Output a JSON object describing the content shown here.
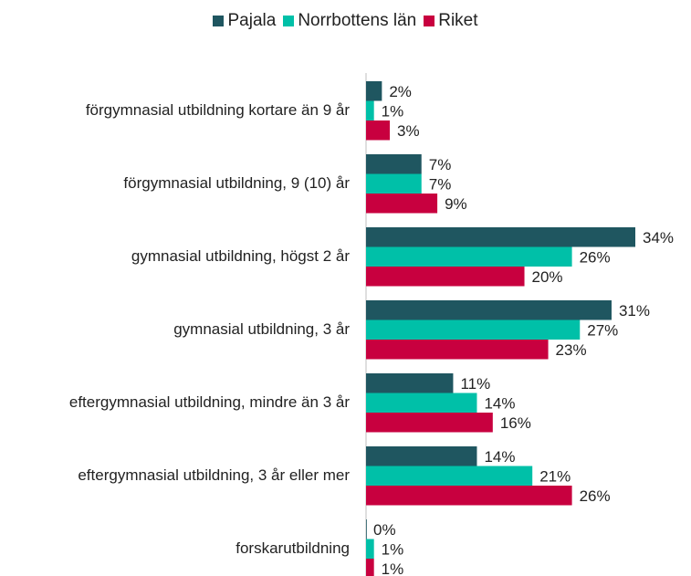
{
  "chart_data": {
    "type": "bar",
    "orientation": "horizontal",
    "categories": [
      "förgymnasial utbildning kortare än 9 år",
      "förgymnasial utbildning, 9 (10) år",
      "gymnasial utbildning, högst 2 år",
      "gymnasial utbildning, 3 år",
      "eftergymnasial utbildning, mindre än 3 år",
      "eftergymnasial utbildning, 3 år eller mer",
      "forskarutbildning"
    ],
    "series": [
      {
        "name": "Pajala",
        "color": "#1f5660",
        "values": [
          2,
          7,
          34,
          31,
          11,
          14,
          0
        ],
        "value_labels": [
          "2%",
          "7%",
          "34%",
          "31%",
          "11%",
          "14%",
          "0%"
        ]
      },
      {
        "name": "Norrbottens län",
        "color": "#00c0a8",
        "values": [
          1,
          7,
          26,
          27,
          14,
          21,
          1
        ],
        "value_labels": [
          "1%",
          "7%",
          "26%",
          "27%",
          "14%",
          "21%",
          "1%"
        ]
      },
      {
        "name": "Riket",
        "color": "#c8003f",
        "values": [
          3,
          9,
          20,
          23,
          16,
          26,
          1
        ],
        "value_labels": [
          "3%",
          "9%",
          "20%",
          "23%",
          "16%",
          "26%",
          "1%"
        ]
      }
    ],
    "legend": "top"
  }
}
